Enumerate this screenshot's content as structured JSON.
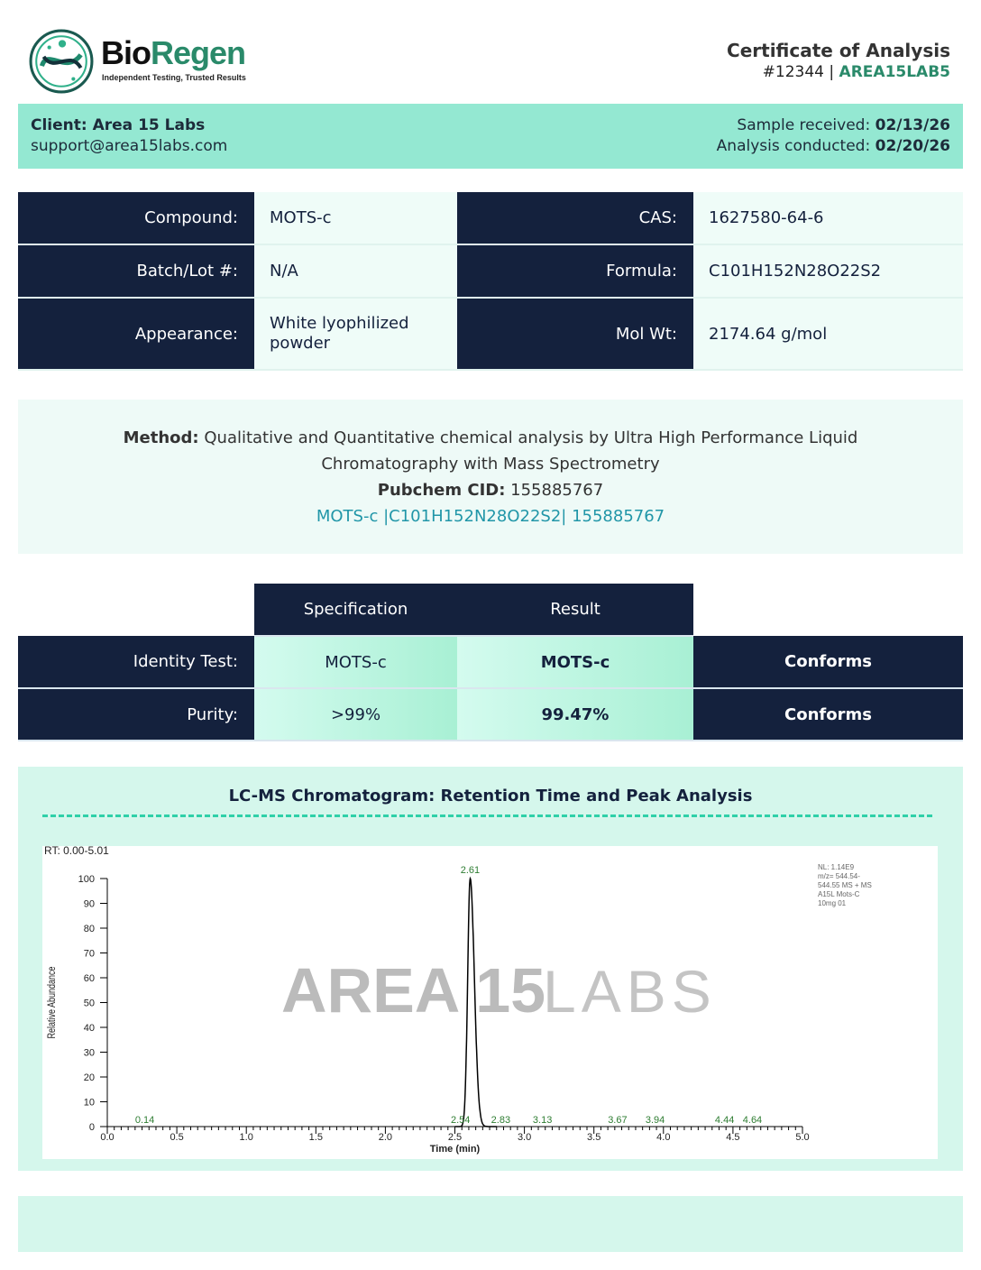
{
  "header": {
    "brand_part1": "Bio",
    "brand_part2": "Regen",
    "tagline": "Independent Testing, Trusted Results",
    "title": "Certificate of Analysis",
    "number": "#12344",
    "separator": " | ",
    "code": "AREA15LAB5"
  },
  "client": {
    "name_label": "Client: ",
    "name": "Area 15 Labs",
    "email": "support@area15labs.com",
    "received_label": "Sample received: ",
    "received": "02/13/26",
    "conducted_label": "Analysis conducted: ",
    "conducted": "02/20/26"
  },
  "info": [
    {
      "label": "Compound:",
      "value": "MOTS-c",
      "label2": "CAS:",
      "value2": "1627580-64-6"
    },
    {
      "label": "Batch/Lot #:",
      "value": "N/A",
      "label2": "Formula:",
      "value2": "C101H152N28O22S2"
    },
    {
      "label": "Appearance:",
      "value": "White lyophilized powder",
      "label2": "Mol Wt:",
      "value2": "2174.64 g/mol"
    }
  ],
  "method": {
    "label": "Method:",
    "text": " Qualitative and Quantitative chemical analysis by Ultra High Performance Liquid Chromatography with Mass Spectrometry",
    "cid_label": "Pubchem CID:",
    "cid": " 155885767",
    "link": "MOTS-c |C101H152N28O22S2| 155885767"
  },
  "results": {
    "headers": [
      "Specification",
      "Result"
    ],
    "rows": [
      {
        "label": "Identity Test:",
        "spec": "MOTS-c",
        "result": "MOTS-c",
        "status": "Conforms"
      },
      {
        "label": "Purity:",
        "spec": ">99%",
        "result": "99.47%",
        "status": "Conforms"
      }
    ]
  },
  "chart_section": {
    "title": "LC-MS Chromatogram: Retention Time and Peak Analysis"
  },
  "chart_data": {
    "type": "line",
    "range_label": "RT: 0.00-5.01",
    "xlabel": "Time (min)",
    "ylabel": "Relative Abundance",
    "xlim": [
      0,
      5
    ],
    "ylim": [
      0,
      100
    ],
    "xticks": [
      "0.0",
      "0.5",
      "1.0",
      "1.5",
      "2.0",
      "2.5",
      "3.0",
      "3.5",
      "4.0",
      "4.5",
      "5.0"
    ],
    "yticks": [
      "0",
      "10",
      "20",
      "30",
      "40",
      "50",
      "60",
      "70",
      "80",
      "90",
      "100"
    ],
    "main_peak": {
      "rt": 2.61,
      "abundance": 100
    },
    "peak_labels": [
      {
        "rt": 0.14,
        "label": "0.14"
      },
      {
        "rt": 2.54,
        "label": "2.54"
      },
      {
        "rt": 2.83,
        "label": "2.83"
      },
      {
        "rt": 3.13,
        "label": "3.13"
      },
      {
        "rt": 3.67,
        "label": "3.67"
      },
      {
        "rt": 3.94,
        "label": "3.94"
      },
      {
        "rt": 4.44,
        "label": "4.44"
      },
      {
        "rt": 4.64,
        "label": "4.64"
      }
    ],
    "info_text": [
      "NL: 1.14E9",
      "m/z= 544.54-",
      "544.55 MS + MS",
      "A15L Mots-C",
      "10mg 01"
    ],
    "watermark": {
      "part1": "AREA 15",
      "part2": "LABS"
    },
    "colors": {
      "trace": "#000000",
      "labels": "#2e7d32"
    },
    "grid": false
  }
}
